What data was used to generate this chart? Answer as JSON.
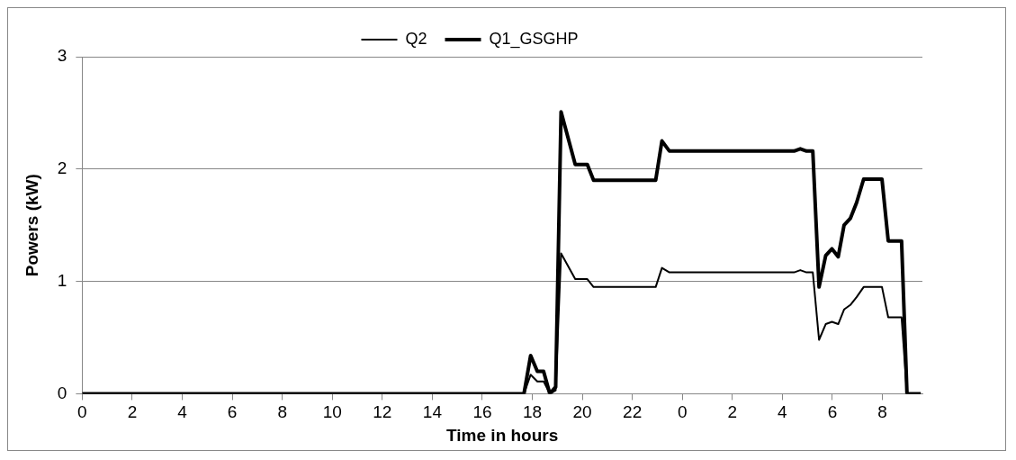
{
  "chart_data": {
    "type": "line",
    "xlabel": "Time in hours",
    "ylabel": "Powers (kW)",
    "xlim": [
      "--01-01T00:00",
      "--01-02T09:36"
    ],
    "xticks": [
      {
        "value": "--01-01T00:00",
        "label": "0"
      },
      {
        "value": "--01-01T02:00",
        "label": "2"
      },
      {
        "value": "--01-01T04:00",
        "label": "4"
      },
      {
        "value": "--01-01T06:00",
        "label": "6"
      },
      {
        "value": "--01-01T08:00",
        "label": "8"
      },
      {
        "value": "--01-01T10:00",
        "label": "10"
      },
      {
        "value": "--01-01T12:00",
        "label": "12"
      },
      {
        "value": "--01-01T14:00",
        "label": "14"
      },
      {
        "value": "--01-01T16:00",
        "label": "16"
      },
      {
        "value": "--01-01T18:00",
        "label": "18"
      },
      {
        "value": "--01-01T20:00",
        "label": "20"
      },
      {
        "value": "--01-01T22:00",
        "label": "22"
      },
      {
        "value": "--01-02T00:00",
        "label": "0"
      },
      {
        "value": "--01-02T02:00",
        "label": "2"
      },
      {
        "value": "--01-02T04:00",
        "label": "4"
      },
      {
        "value": "--01-02T06:00",
        "label": "6"
      },
      {
        "value": "--01-02T08:00",
        "label": "8"
      }
    ],
    "ylim": [
      0,
      3
    ],
    "yticks": [
      0,
      1,
      2,
      3
    ],
    "grid": "y",
    "legend": "top",
    "marker": "none",
    "line_style": "solid",
    "x": [
      "--01-01T00:00",
      "--01-01T17:40",
      "--01-01T17:56",
      "--01-01T18:12",
      "--01-01T18:27",
      "--01-01T18:42",
      "--01-01T18:56",
      "--01-01T19:09",
      "--01-01T19:43",
      "--01-01T20:12",
      "--01-01T20:27",
      "--01-01T22:56",
      "--01-01T23:11",
      "--01-01T23:29",
      "--01-02T04:28",
      "--01-02T04:43",
      "--01-02T04:58",
      "--01-02T05:13",
      "--01-02T05:28",
      "--01-02T05:44",
      "--01-02T05:59",
      "--01-02T06:14",
      "--01-02T06:28",
      "--01-02T06:43",
      "--01-02T06:58",
      "--01-02T07:15",
      "--01-02T07:59",
      "--01-02T08:14",
      "--01-02T08:46",
      "--01-02T08:59",
      "--01-02T09:32"
    ],
    "series": [
      {
        "name": "Q2",
        "color": "#000000",
        "values": [
          0,
          0,
          0.17,
          0.11,
          0.11,
          0,
          0.03,
          1.25,
          1.02,
          1.02,
          0.95,
          0.95,
          1.12,
          1.08,
          1.08,
          1.1,
          1.08,
          1.08,
          0.48,
          0.62,
          0.64,
          0.62,
          0.75,
          0.79,
          0.86,
          0.95,
          0.95,
          0.68,
          0.68,
          0,
          0
        ]
      },
      {
        "name": "Q1_GSGHP",
        "color": "#000000",
        "values": [
          0,
          0,
          0.34,
          0.2,
          0.2,
          0,
          0.06,
          2.51,
          2.04,
          2.04,
          1.9,
          1.9,
          2.25,
          2.16,
          2.16,
          2.18,
          2.16,
          2.16,
          0.95,
          1.23,
          1.29,
          1.22,
          1.5,
          1.56,
          1.7,
          1.91,
          1.91,
          1.36,
          1.36,
          0,
          0
        ]
      }
    ]
  }
}
